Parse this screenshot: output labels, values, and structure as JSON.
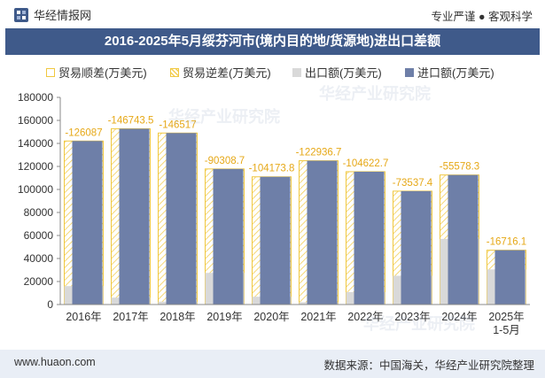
{
  "header": {
    "brand": "华经情报网",
    "slogan": "专业严谨 ● 客观科学"
  },
  "colors": {
    "title_bg": "#3f5a8a",
    "import": "#6e7fa8",
    "export": "#d9d9d9",
    "balance_border": "#f0c840",
    "hatch": "#f4cf55",
    "footer_bg": "#e9eef6"
  },
  "watermark": "华经产业研究院",
  "chart_data": {
    "type": "bar",
    "title": "2016-2025年5月绥芬河市(境内目的地/货源地)进出口差额",
    "legend": [
      "贸易顺差(万美元)",
      "贸易逆差(万美元)",
      "出口额(万美元)",
      "进口额(万美元)"
    ],
    "categories": [
      "2016年",
      "2017年",
      "2018年",
      "2019年",
      "2020年",
      "2021年",
      "2022年",
      "2023年",
      "2024年",
      "2025年\n1-5月"
    ],
    "category_lines": [
      [
        "2016年"
      ],
      [
        "2017年"
      ],
      [
        "2018年"
      ],
      [
        "2019年"
      ],
      [
        "2020年"
      ],
      [
        "2021年"
      ],
      [
        "2022年"
      ],
      [
        "2023年"
      ],
      [
        "2024年"
      ],
      [
        "2025年",
        "1-5月"
      ]
    ],
    "ylim": [
      0,
      180000
    ],
    "yticks": [
      0,
      20000,
      40000,
      60000,
      80000,
      100000,
      120000,
      140000,
      160000,
      180000
    ],
    "series": [
      {
        "name": "出口额(万美元)",
        "values": [
          16000,
          6000,
          2500,
          27500,
          6800,
          2000,
          10800,
          25000,
          57000,
          30500
        ]
      },
      {
        "name": "进口额(万美元)",
        "values": [
          142087,
          152743.5,
          149017,
          117808.7,
          110973.8,
          124936.7,
          115422.7,
          98537.4,
          112578.3,
          47216.1
        ]
      }
    ],
    "balance": [
      -126087,
      -146743.5,
      -146517,
      -90308.7,
      -104173.8,
      -122936.7,
      -104622.7,
      -73537.4,
      -55578.3,
      -16716.1
    ],
    "balance_labels": [
      "-126087",
      "-146743.5",
      "-146517",
      "-90308.7",
      "-104173.8",
      "-122936.7",
      "-104622.7",
      "-73537.4",
      "-55578.3",
      "-16716.1"
    ],
    "gridlines": false
  },
  "footer": {
    "website": "www.huaon.com",
    "source": "数据来源：中国海关，华经产业研究院整理"
  }
}
